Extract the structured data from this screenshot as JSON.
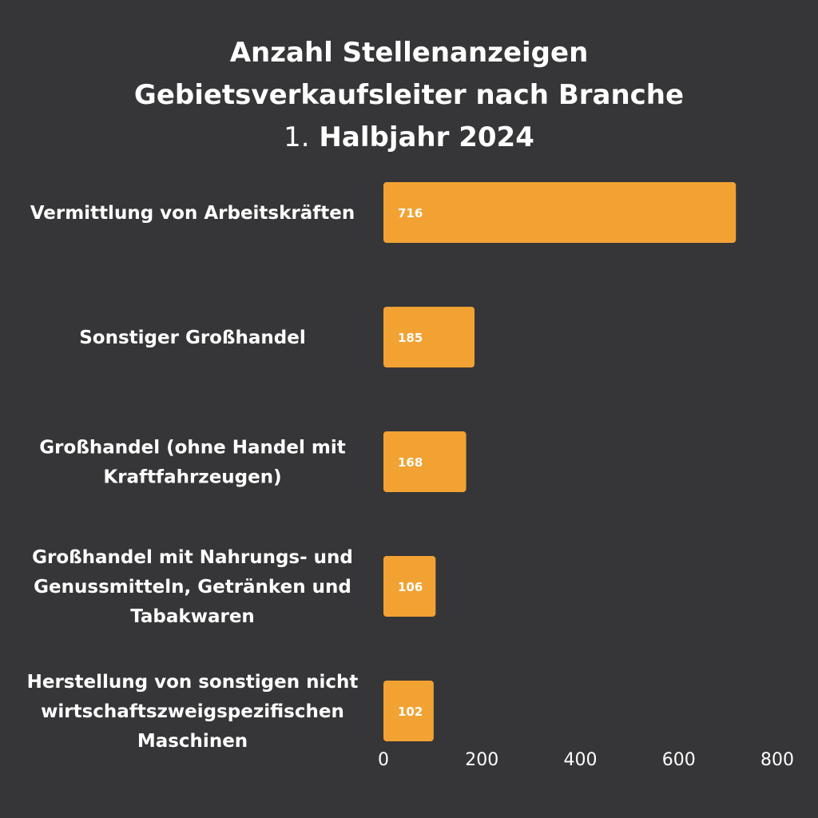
{
  "chart_data": {
    "type": "bar",
    "orientation": "horizontal",
    "title_lines": [
      "Anzahl Stellenanzeigen",
      "Gebietsverkaufsleiter nach Branche"
    ],
    "title_period_number": "1.",
    "title_period_text": "Halbjahr 2024",
    "categories": [
      [
        "Vermittlung von Arbeitskräften"
      ],
      [
        "Sonstiger Großhandel"
      ],
      [
        "Großhandel (ohne Handel mit",
        "Kraftfahrzeugen)"
      ],
      [
        "Großhandel mit Nahrungs- und",
        "Genussmitteln, Getränken und",
        "Tabakwaren"
      ],
      [
        "Herstellung von sonstigen nicht",
        "wirtschaftszweigspezifischen",
        "Maschinen"
      ]
    ],
    "values": [
      716,
      185,
      168,
      106,
      102
    ],
    "value_labels": [
      "716",
      "185",
      "168",
      "106",
      "102"
    ],
    "xlim": [
      0,
      800
    ],
    "x_ticks": [
      0,
      200,
      400,
      600,
      800
    ],
    "x_tick_labels": [
      "0",
      "200",
      "400",
      "600",
      "800"
    ],
    "grid": false,
    "colors": {
      "bar": "#F2A233",
      "background": "#363638",
      "text": "#FFFFFF"
    }
  }
}
